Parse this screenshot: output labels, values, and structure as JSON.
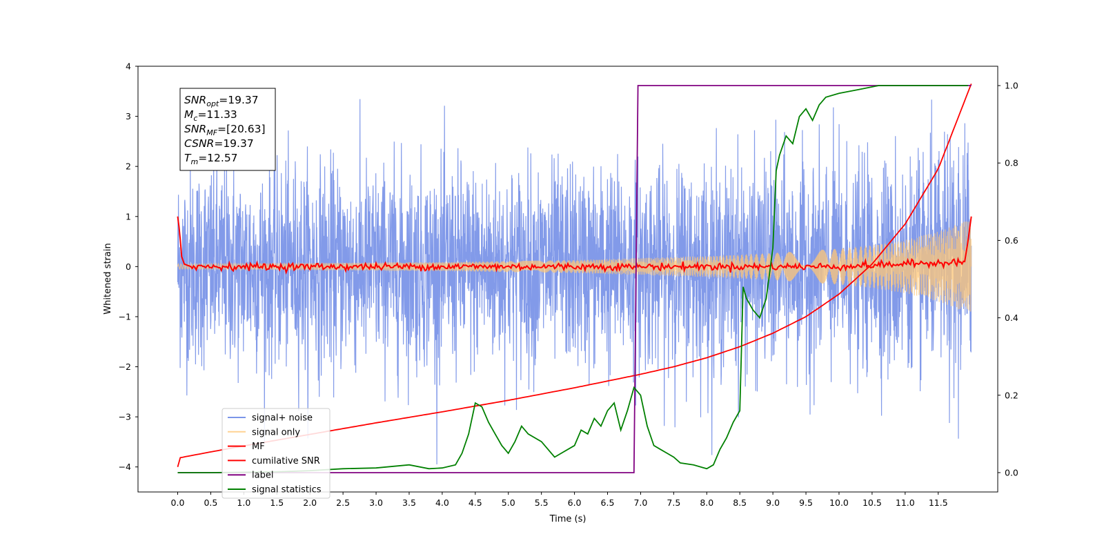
{
  "chart_data": {
    "type": "line",
    "xlabel": "Time (s)",
    "ylabel": "Whitened strain",
    "xlim": [
      -0.6,
      12.4
    ],
    "ylim": [
      -4.5,
      4.0
    ],
    "y2lim": [
      -0.05,
      1.05
    ],
    "x_ticks": [
      "0.0",
      "0.5",
      "1.0",
      "1.5",
      "2.0",
      "2.5",
      "3.0",
      "3.5",
      "4.0",
      "4.5",
      "5.0",
      "5.5",
      "6.0",
      "6.5",
      "7.0",
      "7.5",
      "8.0",
      "8.5",
      "9.0",
      "9.5",
      "10.0",
      "10.5",
      "11.0",
      "11.5"
    ],
    "y_ticks": [
      "4",
      "3",
      "2",
      "1",
      "0",
      "−1",
      "−2",
      "−3",
      "−4"
    ],
    "y2_ticks": [
      "1.0",
      "0.8",
      "0.6",
      "0.4",
      "0.2",
      "0.0"
    ],
    "info_box": [
      {
        "sym": "SNR",
        "sub": "opt",
        "value": "=19.37"
      },
      {
        "sym": "M",
        "sub": "c",
        "value": "=11.33"
      },
      {
        "sym": "SNR",
        "sub": "MF",
        "value": "=[20.63]"
      },
      {
        "sym": "CSNR",
        "sub": "",
        "value": "=19.37"
      },
      {
        "sym": "T",
        "sub": "m",
        "value": "=12.57"
      }
    ],
    "legend": {
      "placement": "lower-left",
      "entries": [
        {
          "label": "signal+ noise",
          "color": "#7b95e8"
        },
        {
          "label": "signal only",
          "color": "#ffc777"
        },
        {
          "label": "MF",
          "color": "#ff0000"
        },
        {
          "label": "cumilative SNR",
          "color": "#ff0000"
        },
        {
          "label": "label",
          "color": "#800080"
        },
        {
          "label": "signal statistics",
          "color": "#008000"
        }
      ]
    },
    "series": [
      {
        "name": "signal+ noise",
        "axis": "left",
        "color": "#7b95e8",
        "description_points": {
          "t_start": 0.0,
          "t_end": 12.0,
          "noise_sigma": 1.0,
          "max_positive": 3.65,
          "max_negative": -4.2
        }
      },
      {
        "name": "signal only",
        "axis": "left",
        "color": "#ffc777",
        "amplitude_envelope": {
          "x": [
            0.0,
            2.0,
            4.0,
            6.0,
            7.0,
            8.0,
            9.0,
            10.0,
            10.5,
            11.0,
            11.5,
            12.0
          ],
          "y": [
            0.05,
            0.07,
            0.09,
            0.13,
            0.17,
            0.21,
            0.27,
            0.36,
            0.43,
            0.53,
            0.7,
            0.95
          ]
        }
      },
      {
        "name": "MF",
        "axis": "left",
        "color": "#ff0000",
        "x": [
          0.0,
          0.03,
          0.06,
          0.1,
          0.2,
          1.0,
          2.0,
          4.0,
          6.0,
          8.0,
          10.0,
          11.9,
          11.95,
          12.0
        ],
        "y": [
          1.0,
          0.7,
          0.2,
          0.05,
          0.0,
          0.0,
          0.0,
          0.0,
          0.0,
          0.0,
          0.0,
          0.1,
          0.5,
          1.0
        ]
      },
      {
        "name": "cumilative SNR",
        "axis": "left",
        "color": "#ff0000",
        "x": [
          0.0,
          0.02,
          0.5,
          1.0,
          2.0,
          3.0,
          4.0,
          5.0,
          6.0,
          7.0,
          7.5,
          8.0,
          8.5,
          9.0,
          9.5,
          10.0,
          10.5,
          11.0,
          11.5,
          12.0
        ],
        "y": [
          -4.0,
          -3.82,
          -3.7,
          -3.58,
          -3.35,
          -3.12,
          -2.9,
          -2.67,
          -2.42,
          -2.15,
          -2.0,
          -1.82,
          -1.6,
          -1.33,
          -1.0,
          -0.55,
          0.05,
          0.85,
          1.95,
          3.65
        ]
      },
      {
        "name": "label",
        "axis": "right",
        "color": "#800080",
        "x": [
          0.0,
          6.9,
          6.96,
          12.0
        ],
        "y": [
          0.0,
          0.0,
          1.0,
          1.0
        ]
      },
      {
        "name": "signal statistics",
        "axis": "right",
        "color": "#008000",
        "x": [
          0.0,
          0.5,
          1.0,
          1.5,
          2.0,
          2.5,
          3.0,
          3.5,
          3.8,
          4.0,
          4.2,
          4.3,
          4.4,
          4.5,
          4.6,
          4.7,
          4.8,
          4.9,
          5.0,
          5.1,
          5.2,
          5.3,
          5.5,
          5.7,
          5.8,
          6.0,
          6.1,
          6.2,
          6.3,
          6.4,
          6.5,
          6.6,
          6.7,
          6.8,
          6.9,
          7.0,
          7.1,
          7.2,
          7.3,
          7.4,
          7.5,
          7.6,
          7.8,
          8.0,
          8.1,
          8.2,
          8.3,
          8.4,
          8.5,
          8.55,
          8.6,
          8.7,
          8.8,
          8.9,
          9.0,
          9.05,
          9.1,
          9.2,
          9.3,
          9.4,
          9.5,
          9.6,
          9.7,
          9.8,
          10.0,
          10.3,
          10.6,
          11.0,
          11.5,
          11.95
        ],
        "y": [
          0.0,
          0.0,
          0.001,
          0.002,
          0.005,
          0.01,
          0.012,
          0.02,
          0.01,
          0.012,
          0.02,
          0.05,
          0.1,
          0.18,
          0.17,
          0.13,
          0.1,
          0.07,
          0.05,
          0.08,
          0.12,
          0.1,
          0.08,
          0.04,
          0.05,
          0.07,
          0.11,
          0.1,
          0.14,
          0.12,
          0.16,
          0.18,
          0.11,
          0.16,
          0.22,
          0.2,
          0.12,
          0.07,
          0.06,
          0.05,
          0.04,
          0.025,
          0.02,
          0.01,
          0.02,
          0.06,
          0.09,
          0.13,
          0.16,
          0.48,
          0.45,
          0.42,
          0.4,
          0.45,
          0.58,
          0.78,
          0.82,
          0.87,
          0.85,
          0.92,
          0.94,
          0.91,
          0.95,
          0.97,
          0.98,
          0.99,
          1.0,
          1.0,
          1.0,
          1.0
        ]
      }
    ]
  }
}
